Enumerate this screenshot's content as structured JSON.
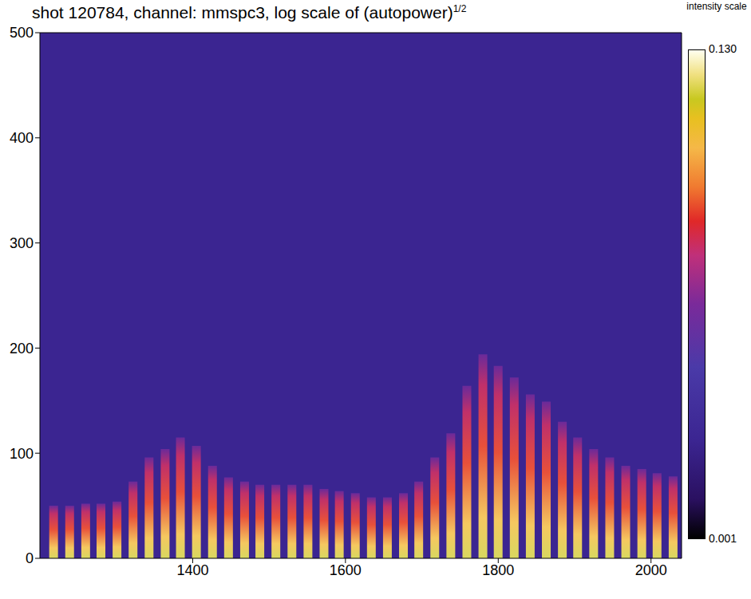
{
  "chart_data": {
    "type": "bar",
    "title": "shot 120784, channel: mmspc3, log scale of (autopower)",
    "title_superscript": "1/2",
    "x": [
      1218,
      1239,
      1260,
      1280,
      1301,
      1322,
      1343,
      1364,
      1384,
      1405,
      1426,
      1447,
      1468,
      1488,
      1509,
      1530,
      1551,
      1572,
      1592,
      1613,
      1634,
      1655,
      1676,
      1696,
      1717,
      1738,
      1759,
      1780,
      1800,
      1821,
      1842,
      1863,
      1884,
      1904,
      1925,
      1946,
      1967,
      1988,
      2008,
      2029
    ],
    "values": [
      50,
      50,
      52,
      52,
      54,
      73,
      96,
      104,
      115,
      107,
      88,
      77,
      73,
      70,
      70,
      70,
      70,
      66,
      64,
      62,
      58,
      58,
      62,
      73,
      96,
      119,
      164,
      194,
      183,
      172,
      156,
      149,
      130,
      115,
      104,
      96,
      88,
      85,
      81,
      78
    ],
    "color": "#e8503a",
    "xlim": [
      1200,
      2040
    ],
    "xticks": [
      1400,
      1600,
      1800,
      2000
    ],
    "ylim": [
      0,
      500
    ],
    "yticks": [
      0,
      100,
      200,
      300,
      400,
      500
    ],
    "grid": false,
    "colorbar": {
      "label": "intensity scale",
      "range": [
        0.001,
        0.13
      ],
      "ticks": [
        {
          "value": 0.13,
          "label": "0.130"
        },
        {
          "value": 0.001,
          "label": "0.001"
        }
      ]
    }
  }
}
